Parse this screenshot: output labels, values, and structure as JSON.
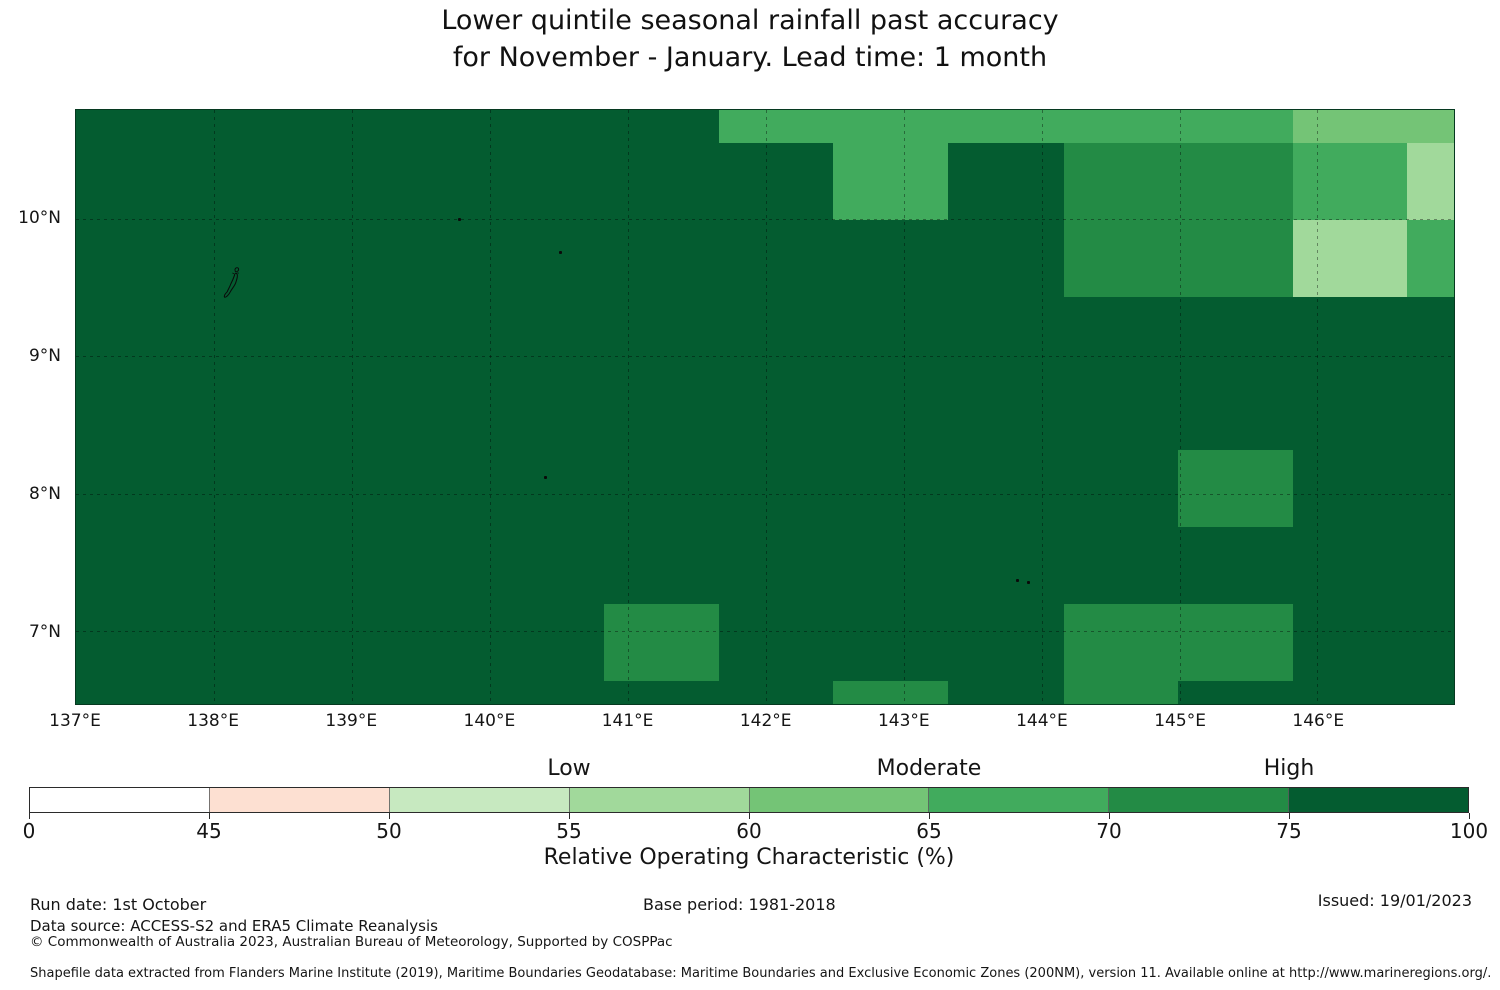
{
  "title": {
    "line1": "Lower quintile seasonal rainfall past accuracy",
    "line2": "for November - January. Lead time: 1 month"
  },
  "chart_data": {
    "type": "heatmap",
    "title": "Lower quintile seasonal rainfall past accuracy for November - January. Lead time: 1 month",
    "extent": {
      "lon_min": 137.0,
      "lon_max": 146.99,
      "lat_min": 6.47,
      "lat_max": 10.79
    },
    "grid": true,
    "gridline_lons": [
      138,
      139,
      140,
      141,
      142,
      143,
      144,
      145,
      146
    ],
    "gridline_lats": [
      7,
      8,
      9,
      10
    ],
    "x_ticks": [
      {
        "label": "137°E",
        "lon": 137
      },
      {
        "label": "138°E",
        "lon": 138
      },
      {
        "label": "139°E",
        "lon": 139
      },
      {
        "label": "140°E",
        "lon": 140
      },
      {
        "label": "141°E",
        "lon": 141
      },
      {
        "label": "142°E",
        "lon": 142
      },
      {
        "label": "143°E",
        "lon": 143
      },
      {
        "label": "144°E",
        "lon": 144
      },
      {
        "label": "145°E",
        "lon": 145
      },
      {
        "label": "146°E",
        "lon": 146
      }
    ],
    "y_ticks": [
      {
        "label": "10°N",
        "lat": 10
      },
      {
        "label": "9°N",
        "lat": 9
      },
      {
        "label": "8°N",
        "lat": 8
      },
      {
        "label": "7°N",
        "lat": 7
      }
    ],
    "bins": [
      {
        "range": "0-45",
        "color": "#ffffff"
      },
      {
        "range": "45-50",
        "color": "#fde0d2"
      },
      {
        "range": "50-55",
        "color": "#c7e9c0"
      },
      {
        "range": "55-60",
        "color": "#a1d99b"
      },
      {
        "range": "60-65",
        "color": "#74c476"
      },
      {
        "range": "65-70",
        "color": "#41ab5d"
      },
      {
        "range": "70-75",
        "color": "#238b45"
      },
      {
        "range": "75-100",
        "color": "#045c30"
      }
    ],
    "base_bin": "75-100",
    "patches": [
      {
        "lon": [
          141.66,
          145.82
        ],
        "lat": [
          10.55,
          10.79
        ],
        "bin": "65-70"
      },
      {
        "lon": [
          145.82,
          146.99
        ],
        "lat": [
          10.55,
          10.79
        ],
        "bin": "60-65"
      },
      {
        "lon": [
          142.49,
          143.32
        ],
        "lat": [
          9.99,
          10.55
        ],
        "bin": "65-70"
      },
      {
        "lon": [
          144.16,
          145.82
        ],
        "lat": [
          9.43,
          10.55
        ],
        "bin": "70-75"
      },
      {
        "lon": [
          145.82,
          146.65
        ],
        "lat": [
          9.99,
          10.55
        ],
        "bin": "65-70"
      },
      {
        "lon": [
          146.65,
          146.99
        ],
        "lat": [
          9.99,
          10.55
        ],
        "bin": "55-60"
      },
      {
        "lon": [
          145.82,
          146.65
        ],
        "lat": [
          9.43,
          9.99
        ],
        "bin": "55-60"
      },
      {
        "lon": [
          146.65,
          146.99
        ],
        "lat": [
          9.43,
          9.99
        ],
        "bin": "65-70"
      },
      {
        "lon": [
          144.99,
          145.82
        ],
        "lat": [
          7.76,
          8.32
        ],
        "bin": "70-75"
      },
      {
        "lon": [
          140.83,
          141.66
        ],
        "lat": [
          6.64,
          7.2
        ],
        "bin": "70-75"
      },
      {
        "lon": [
          144.16,
          144.99
        ],
        "lat": [
          6.47,
          7.2
        ],
        "bin": "70-75"
      },
      {
        "lon": [
          144.99,
          145.82
        ],
        "lat": [
          6.64,
          7.2
        ],
        "bin": "70-75"
      },
      {
        "lon": [
          142.49,
          143.32
        ],
        "lat": [
          6.47,
          6.64
        ],
        "bin": "70-75"
      }
    ],
    "islands": {
      "outline": {
        "lon_w": 138.05,
        "lat_n": 9.66,
        "w_deg": 0.15,
        "h_deg": 0.26
      },
      "dots": [
        {
          "lon": 139.78,
          "lat": 10.0
        },
        {
          "lon": 140.51,
          "lat": 9.76
        },
        {
          "lon": 140.4,
          "lat": 8.12
        },
        {
          "lon": 143.82,
          "lat": 7.37
        },
        {
          "lon": 143.9,
          "lat": 7.36
        }
      ]
    }
  },
  "colorbar": {
    "ticks": [
      "0",
      "45",
      "50",
      "55",
      "60",
      "65",
      "70",
      "75",
      "100"
    ],
    "categories": [
      {
        "label": "Low",
        "tick_index": 3
      },
      {
        "label": "Moderate",
        "tick_index": 5
      },
      {
        "label": "High",
        "tick_index": 7
      }
    ],
    "axis_label": "Relative Operating Characteristic (%)"
  },
  "footer": {
    "run_date": "Run date: 1st October",
    "data_source": "Data source: ACCESS-S2 and ERA5 Climate Reanalysis",
    "copyright": "© Commonwealth of Australia 2023, Australian Bureau of Meteorology, Supported by COSPPac",
    "base_period": "Base period: 1981-2018",
    "issued": "Issued: 19/01/2023",
    "shapefile_note": "Shapefile data extracted from Flanders Marine Institute (2019), Maritime Boundaries Geodatabase: Maritime Boundaries and Exclusive Economic Zones (200NM), version 11. Available online at http://www.marineregions.org/."
  }
}
